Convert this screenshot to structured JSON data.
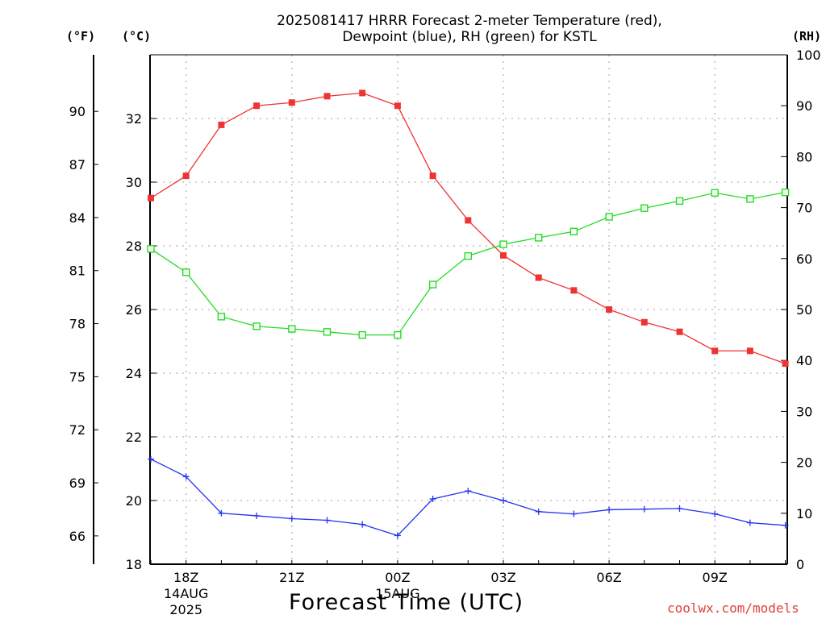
{
  "title_line1": "2025081417 HRRR Forecast 2-meter Temperature (red),",
  "title_line2": "Dewpoint (blue), RH (green) for KSTL",
  "units": {
    "fahrenheit": "(°F)",
    "celsius": "(°C)",
    "rh": "(RH)"
  },
  "xlabel": "Forecast Time (UTC)",
  "watermark": "coolwx.com/models",
  "colors": {
    "temperature": "#ee3333",
    "dewpoint": "#2233ee",
    "rh": "#22dd22",
    "grid": "#b4b4b4"
  },
  "chart_data": {
    "type": "line",
    "x": [
      "17Z",
      "18Z",
      "19Z",
      "20Z",
      "21Z",
      "22Z",
      "23Z",
      "00Z",
      "01Z",
      "02Z",
      "03Z",
      "04Z",
      "05Z",
      "06Z",
      "07Z",
      "08Z",
      "09Z",
      "10Z",
      "11Z"
    ],
    "x_tick_labels": [
      {
        "hour": "18Z",
        "lines": [
          "18Z",
          "14AUG",
          "2025"
        ]
      },
      {
        "hour": "21Z",
        "lines": [
          "21Z"
        ]
      },
      {
        "hour": "00Z",
        "lines": [
          "00Z",
          "15AUG"
        ]
      },
      {
        "hour": "03Z",
        "lines": [
          "03Z"
        ]
      },
      {
        "hour": "06Z",
        "lines": [
          "06Z"
        ]
      },
      {
        "hour": "09Z",
        "lines": [
          "09Z"
        ]
      }
    ],
    "series": [
      {
        "name": "Temperature",
        "axis": "celsius",
        "marker": "filled-square",
        "values": [
          29.5,
          30.2,
          31.8,
          32.4,
          32.5,
          32.7,
          32.8,
          32.4,
          30.2,
          28.8,
          27.7,
          27.0,
          26.6,
          26.0,
          25.6,
          25.3,
          24.7,
          24.7,
          24.3
        ]
      },
      {
        "name": "Dewpoint",
        "axis": "celsius",
        "marker": "plus",
        "values": [
          21.3,
          20.75,
          19.6,
          19.52,
          19.43,
          19.38,
          19.25,
          18.9,
          20.05,
          20.3,
          20.0,
          19.65,
          19.58,
          19.71,
          19.73,
          19.75,
          19.58,
          19.3,
          19.22
        ]
      },
      {
        "name": "RH",
        "axis": "rh",
        "marker": "open-square",
        "values": [
          61.9,
          57.3,
          48.6,
          46.7,
          46.2,
          45.6,
          45.0,
          45.0,
          54.9,
          60.5,
          62.8,
          64.1,
          65.3,
          68.2,
          69.9,
          71.3,
          72.9,
          71.7,
          73.0
        ]
      }
    ],
    "y_left_celsius": {
      "ticks": [
        18,
        20,
        22,
        24,
        26,
        28,
        30,
        32
      ],
      "range": [
        18,
        34
      ]
    },
    "y_left_fahrenheit": {
      "ticks": [
        66,
        69,
        72,
        75,
        78,
        81,
        84,
        87,
        90
      ],
      "range": [
        64.4,
        93.2
      ]
    },
    "y_right_rh": {
      "ticks": [
        0,
        10,
        20,
        30,
        40,
        50,
        60,
        70,
        80,
        90,
        100
      ],
      "range": [
        0,
        100
      ]
    },
    "grid": true,
    "legend": "none"
  }
}
